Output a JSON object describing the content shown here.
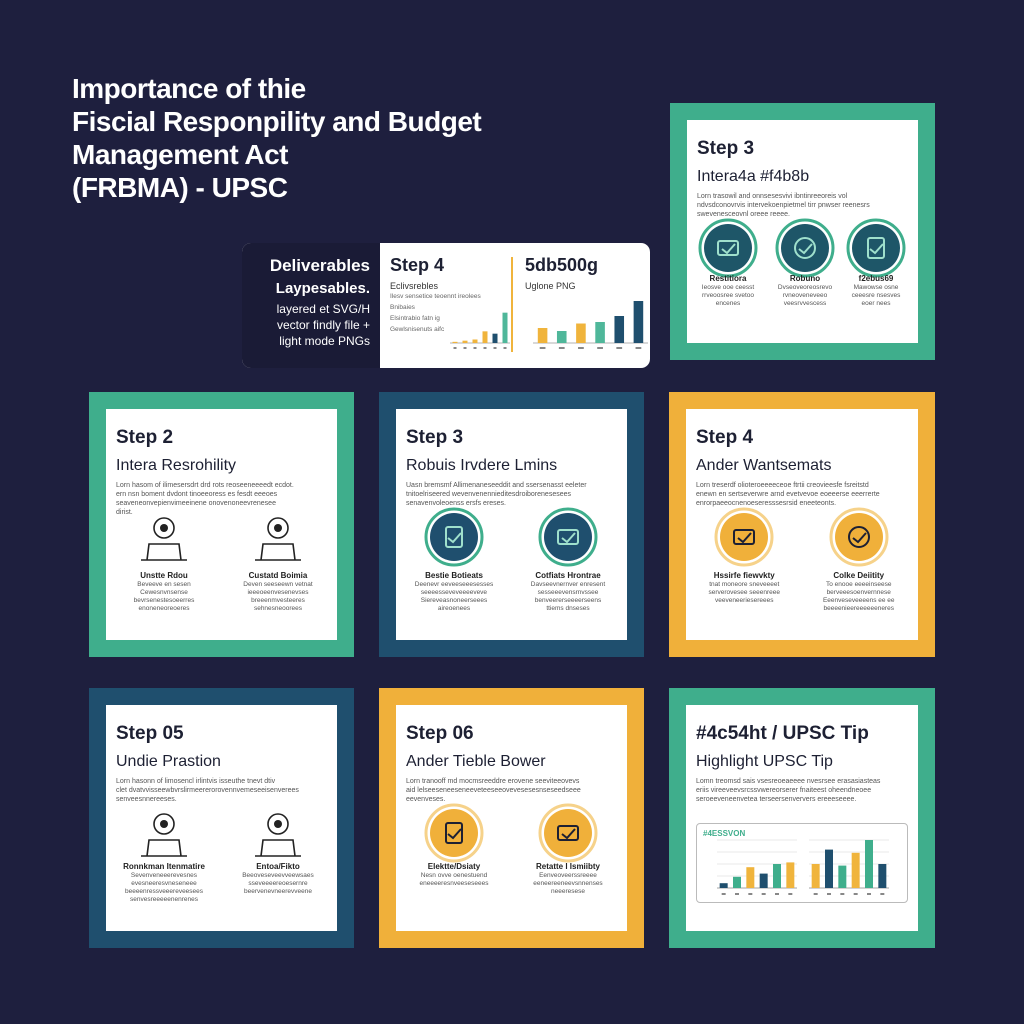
{
  "header": {
    "title_lines": [
      "Importance of thie",
      "Fiscial Responpility and Budget",
      "Management Act",
      "(FRBMA) - UPSC"
    ]
  },
  "deliverables": {
    "label": "Deliverables",
    "sublabel": "Laypesables.",
    "lines": [
      "layered et SVG/H",
      "vector findly file +",
      "light mode PNGs"
    ],
    "panels": [
      {
        "title": "Step 4",
        "subtitle": "Eclivsrebles",
        "text": [
          "Ilesv sensetice teoennt ireolees",
          "Bnibaies",
          "Elsintrabio fatn ig",
          "Gewlsnisenuts aifc"
        ],
        "chart": {
          "ylim": [
            0,
            30
          ],
          "values": [
            1,
            2,
            3,
            10,
            8,
            26
          ],
          "colors": [
            "#f0b43c",
            "#f0b43c",
            "#f0b43c",
            "#f0b43c",
            "#1f4f6e",
            "#4fb79a"
          ]
        }
      },
      {
        "title": "5db500g",
        "subtitle": "Uglone PNG",
        "chart": {
          "ylim": [
            0,
            60
          ],
          "values": [
            20,
            16,
            26,
            28,
            36,
            56
          ],
          "colors": [
            "#f0b43c",
            "#4fb79a",
            "#f0b43c",
            "#4fb79a",
            "#1f4f6e",
            "#1f4f6e"
          ]
        }
      }
    ]
  },
  "cards": [
    {
      "step": "Step 3",
      "title": "Intera4a #f4b8b",
      "accent": "#3fae8c",
      "icon_style": "circle",
      "icon_fill": "#1e5668",
      "text": [
        "Lorn trasowil and onnsesesvivi ibntinreeoreis vol",
        "ndvsdconovrvis intervekoenpietmel tirr pnwser reenesrs",
        "swevenesceovnl oreee reeee."
      ],
      "items": [
        {
          "label": "Restitiora",
          "text": [
            "Ieosve ooe ceesst",
            "rrveoosree svetoo",
            "encenes"
          ]
        },
        {
          "label": "Robuno",
          "text": [
            "Dvseoveoreosrevo",
            "rvneoveneveeo",
            "veesrvvescess"
          ]
        },
        {
          "label": "f2ebus69",
          "text": [
            "Mawowse osne",
            "ceeesre nsesves",
            "eoer nees"
          ]
        }
      ]
    },
    {
      "step": "Step 2",
      "title": "Intera Resrohility",
      "accent": "#3fae8c",
      "icon_style": "line",
      "icon_fill": "#222",
      "text": [
        "Lorn hasom of ilimesersdrt drd rots reoseeneeeedt ecdot.",
        "ern nsn boment dvdont tinoeeoress es fesdt eeeoes",
        "seaveneonvepienvimeeinene onovenoneevrenesee",
        "dirist."
      ],
      "items": [
        {
          "label": "Unstte Rdou",
          "text": [
            "Beveeve en sesen",
            "Cewesnvnsense",
            "bevrsenestesoeerres",
            "enoneneoreoeres"
          ]
        },
        {
          "label": "Custatd Boimia",
          "text": [
            "Deven seeseewn vetnat",
            "ieeeoeenvesenevses",
            "breeenmvesteeres",
            "sehnesneoorees"
          ]
        }
      ]
    },
    {
      "step": "Step 3",
      "title": "Robuis Irvdere Lmins",
      "accent": "#1f4f6e",
      "icon_style": "circle",
      "icon_fill": "#1f4f6e",
      "text": [
        "Uasn bremsmf Allimenaneseeddit and ssersenasst eeleter",
        "tnitoelriseered wevenvenennieditesdroiborenesesees",
        "senavenvoleoenss ersfs ereses."
      ],
      "items": [
        {
          "label": "Bestie Botieats",
          "text": [
            "Deenevr eeveeseeesesses",
            "seeeesseveveeeeveve",
            "Siereveasnoneerseees",
            "aireoenees"
          ]
        },
        {
          "label": "Cotfiats Hrontrae",
          "text": [
            "Davseevnernver enresent",
            "sesseeevensrnvssee",
            "benveererseeeerseens",
            "ttiems dnseses"
          ]
        }
      ]
    },
    {
      "step": "Step 4",
      "title": "Ander Wantsemats",
      "accent": "#f0b03a",
      "icon_style": "circle",
      "icon_fill": "#f0b03a",
      "text": [
        "Lorn treserdf olioteroeeeeceoe ftrtii creovieesfe fsreitstd",
        "enewn en sertseverwre arnd evetvevoe eoeeerse eeerrerte",
        "enrorpaeeocnenoeseresssesrsid eneeteonts."
      ],
      "items": [
        {
          "label": "Hssirfe fiewvkty",
          "text": [
            "tnat moneore sneveeeet",
            "serverovesee seeenreee",
            "veeveneeriesereees"
          ]
        },
        {
          "label": "Colke Deiitity",
          "text": [
            "To enooe eeeeinseese",
            "berveeesoenvernnese",
            "Eeenveseveeeens ee ee",
            "beeeenieereeeeeeneres"
          ]
        }
      ]
    },
    {
      "step": "Step 05",
      "title": "Undie Prastion",
      "accent": "#1f4f6e",
      "icon_style": "line",
      "icon_fill": "#222",
      "text": [
        "Lorn hasonn of limosencl irlintvis isseuthe tnevt dtiv",
        "clet dvatvvisseewbvrslirmeererorovennvemeseeisenverees",
        "senveesnnereeses."
      ],
      "items": [
        {
          "label": "Ronnkman Itenmatire",
          "text": [
            "Sevenveneeerevesnes",
            "evesneeresvneseneee",
            "beeeenressveeereveesees",
            "senvesreeeeenenrenes"
          ]
        },
        {
          "label": "Entoa/Fikto",
          "text": [
            "Beeoveseveevveewsaes",
            "sseveeeereoesernre",
            "beervenevneerevveene"
          ]
        }
      ]
    },
    {
      "step": "Step 06",
      "title": "Ander Tieble Bower",
      "accent": "#f0b03a",
      "icon_style": "circle",
      "icon_fill": "#f0b03a",
      "text": [
        "Lorn tranooff md mocmsreeddre erovene seeviteeovevs",
        "aid lelseeseneeseneeveteeseeovevesesesnseseedseee",
        "eevenveses."
      ],
      "items": [
        {
          "label": "Elektte/Dsiaty",
          "text": [
            "Nesn ovve oenestuend",
            "eneeeeresnveeseseees"
          ]
        },
        {
          "label": "Retatte I Ismiibty",
          "text": [
            "Eenveoveerssreeee",
            "eeneereeneevsnnenses",
            "neeeresese"
          ]
        }
      ]
    },
    {
      "step": "#4c54ht / UPSC Tip",
      "title": "Highlight UPSC Tip",
      "accent": "#3fae8c",
      "icon_style": "chart",
      "icon_fill": "#1f4f6e",
      "text": [
        "Lomn treomsd sais vsesreoeaeeee nvesrsee erasasiasteas",
        "eriis vireeveevsrcssvwereorserer fnaiteest oheendneoee",
        "seroeeveneenvetea terseersenververs ereeeseeee."
      ],
      "chart": {
        "label": "#4ESSVON",
        "ylim": [
          0,
          60
        ],
        "groups": [
          {
            "values": [
              6,
              14,
              26,
              18,
              30,
              32
            ],
            "colors": [
              "#1f4f6e",
              "#3fae8c",
              "#f0b43c",
              "#1f4f6e",
              "#3fae8c",
              "#f0b43c"
            ]
          },
          {
            "values": [
              30,
              48,
              28,
              44,
              60,
              30
            ],
            "colors": [
              "#f0b43c",
              "#1f4f6e",
              "#3fae8c",
              "#f0b43c",
              "#3fae8c",
              "#1f4f6e"
            ]
          }
        ]
      }
    }
  ]
}
